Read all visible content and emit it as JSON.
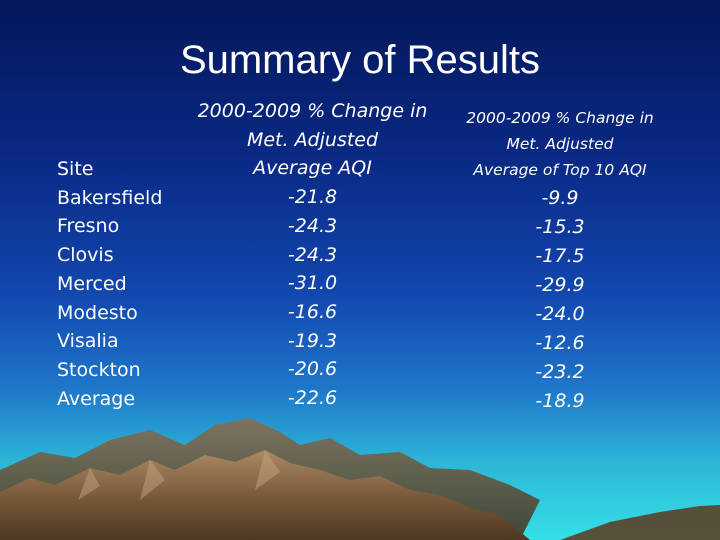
{
  "title": "Summary of Results",
  "table": {
    "site_header": "Site",
    "avg_header": [
      "2000-2009 % Change in",
      "Met. Adjusted",
      "Average AQI"
    ],
    "top10_header": [
      "2000-2009 % Change in",
      "Met. Adjusted",
      "Average of Top 10 AQI"
    ],
    "rows": [
      {
        "site": "Bakersfield",
        "avg": "-21.8",
        "top10": "-9.9"
      },
      {
        "site": "Fresno",
        "avg": "-24.3",
        "top10": "-15.3"
      },
      {
        "site": "Clovis",
        "avg": "-24.3",
        "top10": "-17.5"
      },
      {
        "site": "Merced",
        "avg": "-31.0",
        "top10": "-29.9"
      },
      {
        "site": "Modesto",
        "avg": "-16.6",
        "top10": "-24.0"
      },
      {
        "site": "Visalia",
        "avg": "-19.3",
        "top10": "-12.6"
      },
      {
        "site": "Stockton",
        "avg": "-20.6",
        "top10": "-23.2"
      },
      {
        "site": "Average",
        "avg": "-22.6",
        "top10": "-18.9"
      }
    ]
  },
  "colors": {
    "text": "#ffffff",
    "background_top": "#04175a",
    "background_bottom": "#35e0e6",
    "mountain": "#7a5a3a"
  }
}
